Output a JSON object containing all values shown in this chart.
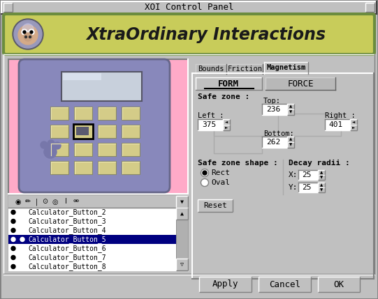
{
  "title": "XOI Control Panel",
  "header_text": "XtraOrdinary Interactions",
  "bg_color": "#c0c0c0",
  "header_bg": "#c8cc5a",
  "header_border": "#6b8c3e",
  "pink_bg": "#ffaac8",
  "tab_labels": [
    "Bounds",
    "Friction",
    "Magnetism"
  ],
  "active_tab": 2,
  "form_tab": "FORM",
  "force_tab": "FORCE",
  "safe_zone_label": "Safe zone :",
  "top_label": "Top:",
  "top_value": "236",
  "left_label": "Left :",
  "left_value": "375",
  "right_label": "Right :",
  "right_value": "401",
  "bottom_label": "Bottom:",
  "bottom_value": "262",
  "safe_zone_shape_label": "Safe zone shape :",
  "rect_label": "Rect",
  "oval_label": "Oval",
  "decay_radii_label": "Decay radii :",
  "x_label": "X:",
  "x_value": "25",
  "y_label": "Y:",
  "y_value": "25",
  "reset_btn": "Reset",
  "apply_btn": "Apply",
  "cancel_btn": "Cancel",
  "ok_btn": "OK",
  "list_items": [
    "Calculator_Button_2",
    "Calculator_Button_3",
    "Calculator_Button_4",
    "Calculator_Button_5",
    "Calculator_Button_6",
    "Calculator_Button_7",
    "Calculator_Button_8"
  ],
  "selected_item": 3,
  "white": "#ffffff",
  "black": "#000000"
}
